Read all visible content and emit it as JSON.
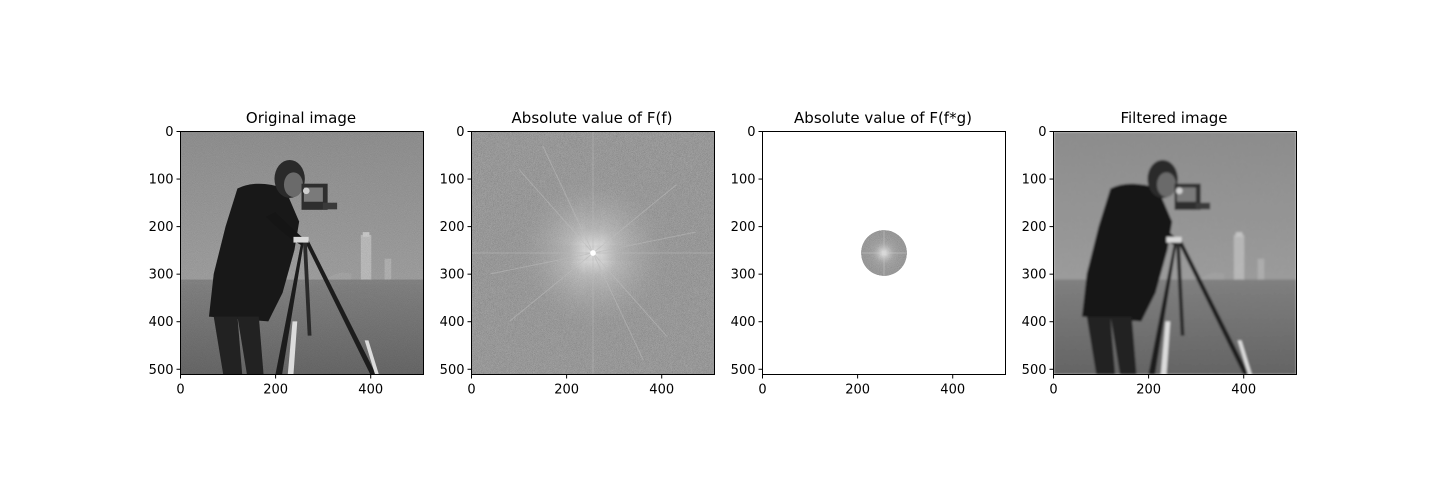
{
  "figure": {
    "background": "#ffffff",
    "axis_color": "#000000"
  },
  "chart_data": [
    {
      "type": "heatmap",
      "title": "Original image",
      "image_content": "grayscale photograph of a cameraman with a tripod camera on a grassy field, buildings in background",
      "colormap": "gray",
      "xlim": [
        0,
        511
      ],
      "ylim": [
        511,
        0
      ],
      "xticks": [
        0,
        200,
        400
      ],
      "yticks": [
        0,
        100,
        200,
        300,
        400,
        500
      ]
    },
    {
      "type": "heatmap",
      "title": "Absolute value of F(f)",
      "image_content": "log-magnitude Fourier spectrum, centered, bright star-shaped pattern at the center on a noisy gray field",
      "colormap": "gray",
      "xlim": [
        0,
        511
      ],
      "ylim": [
        511,
        0
      ],
      "xticks": [
        0,
        200,
        400
      ],
      "yticks": [
        0,
        100,
        200,
        300,
        400,
        500
      ]
    },
    {
      "type": "heatmap",
      "title": "Absolute value of F(f*g)",
      "image_content": "white field with only a small circular disk of spectrum retained at the center (low-pass filter)",
      "colormap": "gray",
      "xlim": [
        0,
        511
      ],
      "ylim": [
        511,
        0
      ],
      "xticks": [
        0,
        200,
        400
      ],
      "yticks": [
        0,
        100,
        200,
        300,
        400,
        500
      ],
      "disk": {
        "center": [
          256,
          256
        ],
        "radius": 48
      }
    },
    {
      "type": "heatmap",
      "title": "Filtered image",
      "image_content": "blurred (low-pass filtered) version of the cameraman photograph with ringing artifacts",
      "colormap": "gray",
      "xlim": [
        0,
        511
      ],
      "ylim": [
        511,
        0
      ],
      "xticks": [
        0,
        200,
        400
      ],
      "yticks": [
        0,
        100,
        200,
        300,
        400,
        500
      ]
    }
  ]
}
